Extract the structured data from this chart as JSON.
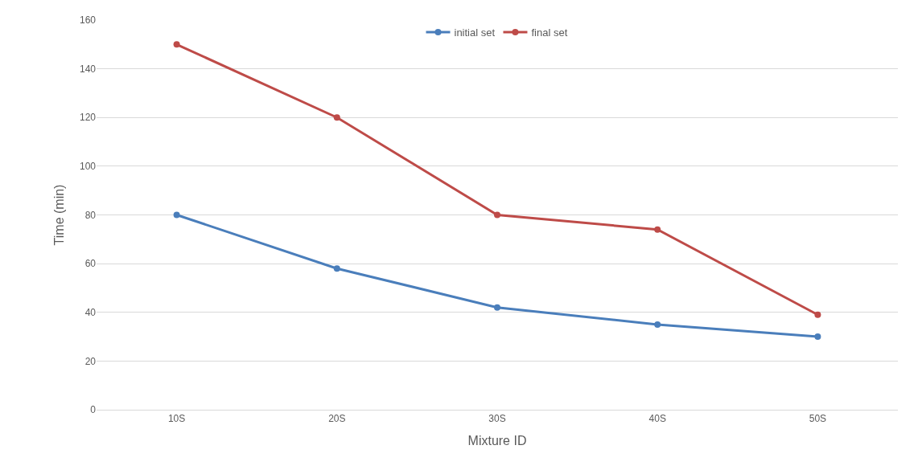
{
  "chart_data": {
    "type": "line",
    "xlabel": "Mixture ID",
    "ylabel": "Time (min)",
    "categories": [
      "10S",
      "20S",
      "30S",
      "40S",
      "50S"
    ],
    "series": [
      {
        "name": "initial set",
        "color": "#4a7ebb",
        "values": [
          80,
          58,
          42,
          35,
          30
        ]
      },
      {
        "name": "final set",
        "color": "#be4b48",
        "values": [
          150,
          120,
          80,
          74,
          39
        ]
      }
    ],
    "ylim": [
      0,
      160
    ],
    "yticks": [
      0,
      20,
      40,
      60,
      80,
      100,
      120,
      140,
      160
    ],
    "grid": "y",
    "legend": "top",
    "marker": "circle",
    "line_style": "solid"
  }
}
